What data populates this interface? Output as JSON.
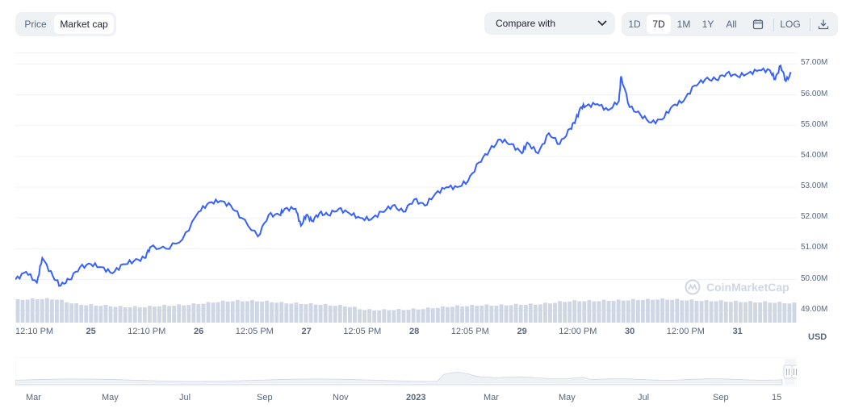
{
  "toggle": {
    "options": [
      "Price",
      "Market cap"
    ],
    "active": "Market cap"
  },
  "compare": {
    "label": "Compare with"
  },
  "ranges": {
    "options": [
      "1D",
      "7D",
      "1M",
      "1Y",
      "All"
    ],
    "active": "7D"
  },
  "log_label": "LOG",
  "watermark": "CoinMarketCap",
  "colors": {
    "line": "#3861fb",
    "volume": "#cfd6e4",
    "muted": "#58667e",
    "grid": "#eff2f5"
  },
  "icons": [
    "chevron-down-icon",
    "calendar-icon",
    "download-icon",
    "coinmarketcap-logo-icon",
    "drag-handle-icon"
  ],
  "chart_data": {
    "type": "line",
    "ylabel": "USD",
    "ylim": [
      48.6,
      57.35
    ],
    "y_ticks": [
      "57.00M",
      "56.00M",
      "55.00M",
      "54.00M",
      "53.00M",
      "52.00M",
      "51.00M",
      "50.00M",
      "49.00M"
    ],
    "x_ticks": [
      "12:10 PM",
      "25",
      "12:10 PM",
      "26",
      "12:05 PM",
      "27",
      "12:05 PM",
      "28",
      "12:05 PM",
      "29",
      "12:00 PM",
      "30",
      "12:00 PM",
      "31"
    ],
    "x_tick_bold": [
      false,
      true,
      false,
      true,
      false,
      true,
      false,
      true,
      false,
      true,
      false,
      true,
      false,
      true
    ],
    "xlim_days": [
      24.3,
      31.55
    ],
    "series": [
      {
        "unit": "M USD",
        "x": [
          24.3,
          24.4,
          24.5,
          24.55,
          24.65,
          24.72,
          24.8,
          24.9,
          25.0,
          25.1,
          25.2,
          25.3,
          25.4,
          25.5,
          25.55,
          25.7,
          25.85,
          26.0,
          26.1,
          26.2,
          26.3,
          26.4,
          26.55,
          26.65,
          26.75,
          26.8,
          26.9,
          26.95,
          27.0,
          27.05,
          27.12,
          27.2,
          27.3,
          27.4,
          27.5,
          27.6,
          27.7,
          27.8,
          27.9,
          28.0,
          28.1,
          28.2,
          28.3,
          28.4,
          28.5,
          28.6,
          28.7,
          28.8,
          28.9,
          29.0,
          29.05,
          29.15,
          29.25,
          29.35,
          29.45,
          29.5,
          29.55,
          29.6,
          29.7,
          29.8,
          29.9,
          29.92,
          30.0,
          30.1,
          30.2,
          30.3,
          30.4,
          30.5,
          30.6,
          30.7,
          30.8,
          30.9,
          31.0,
          31.1,
          31.2,
          31.3,
          31.35,
          31.4,
          31.45,
          31.5
        ],
        "y": [
          50.0,
          50.25,
          49.9,
          50.7,
          50.1,
          49.8,
          50.0,
          50.4,
          50.5,
          50.4,
          50.2,
          50.5,
          50.6,
          50.7,
          51.05,
          51.0,
          51.3,
          52.2,
          52.5,
          52.55,
          52.4,
          52.0,
          51.4,
          52.1,
          52.1,
          52.3,
          52.3,
          51.75,
          52.1,
          51.9,
          52.15,
          52.1,
          52.3,
          52.15,
          52.0,
          51.95,
          52.2,
          52.4,
          52.2,
          52.6,
          52.4,
          52.8,
          53.0,
          53.0,
          53.2,
          53.8,
          54.2,
          54.55,
          54.4,
          54.1,
          54.45,
          54.1,
          54.75,
          54.4,
          54.9,
          55.2,
          55.6,
          55.65,
          55.7,
          55.5,
          55.8,
          56.6,
          55.6,
          55.35,
          55.1,
          55.2,
          55.65,
          55.8,
          56.3,
          56.5,
          56.5,
          56.7,
          56.6,
          56.7,
          56.8,
          56.8,
          56.5,
          56.95,
          56.45,
          56.7
        ]
      }
    ],
    "volume": [
      0.55,
      0.57,
      0.58,
      0.58,
      0.57,
      0.5,
      0.45,
      0.43,
      0.42,
      0.41,
      0.39,
      0.38,
      0.38,
      0.38,
      0.4,
      0.41,
      0.42,
      0.43,
      0.45,
      0.47,
      0.5,
      0.52,
      0.53,
      0.53,
      0.53,
      0.52,
      0.5,
      0.48,
      0.47,
      0.46,
      0.45,
      0.44,
      0.42,
      0.41,
      0.38,
      0.32,
      0.3,
      0.3,
      0.31,
      0.31,
      0.32,
      0.33,
      0.35,
      0.37,
      0.39,
      0.4,
      0.41,
      0.42,
      0.42,
      0.42,
      0.43,
      0.44,
      0.44,
      0.45,
      0.47,
      0.5,
      0.52,
      0.53,
      0.53,
      0.53,
      0.54,
      0.54,
      0.55,
      0.56,
      0.56,
      0.57,
      0.57,
      0.56,
      0.55,
      0.54,
      0.53,
      0.53,
      0.52,
      0.51,
      0.51,
      0.5,
      0.5,
      0.49,
      0.48,
      0.47
    ]
  },
  "navigator": {
    "labels": [
      "Mar",
      "May",
      "Jul",
      "Sep",
      "Nov",
      "2023",
      "Mar",
      "May",
      "Jul",
      "Sep",
      "15"
    ],
    "year_index": 5
  }
}
